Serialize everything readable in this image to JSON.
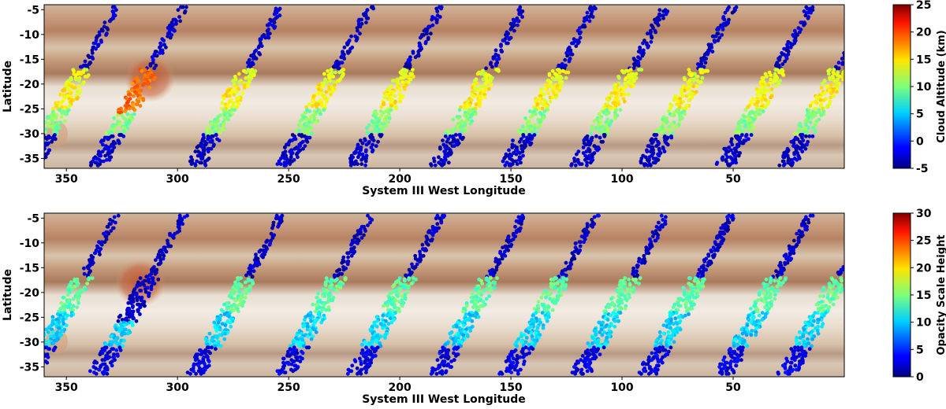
{
  "chart_data": [
    {
      "type": "scatter",
      "title": "",
      "xlabel": "System III West Longitude",
      "ylabel": "Latitude",
      "xlim": [
        360,
        0
      ],
      "ylim": [
        -37,
        -4
      ],
      "xticks": [
        "350",
        "300",
        "250",
        "200",
        "150",
        "100",
        "50"
      ],
      "yticks": [
        "-5",
        "-10",
        "-15",
        "-20",
        "-25",
        "-30",
        "-35"
      ],
      "x_inverted": true,
      "background": "Jupiter cloud-top map (belts and zones, Great Red Spot near 315 W, -22)",
      "colorbar": {
        "label": "Cloud Altitude (km)",
        "colormap": "jet",
        "range": [
          -5,
          25
        ],
        "ticks": [
          "25",
          "20",
          "15",
          "10",
          "5",
          "0",
          "-5"
        ]
      },
      "swath_longitude_centers": [
        346,
        316,
        272,
        232,
        200,
        163,
        131,
        99,
        69,
        34,
        6
      ],
      "series": [
        {
          "values_by_latitude_band": [
            {
              "latitude": [
                -5,
                -17
              ],
              "value": -3
            },
            {
              "latitude": [
                -17,
                -20
              ],
              "value": 13
            },
            {
              "latitude": [
                -20,
                -25
              ],
              "value": 14
            },
            {
              "latitude": [
                -25,
                -30
              ],
              "value": 10
            },
            {
              "latitude": [
                -30,
                -36
              ],
              "value": -3
            }
          ],
          "notable": "Great Red Spot swath at 300-320 W, -18 to -26: ~18 km"
        }
      ]
    },
    {
      "type": "scatter",
      "title": "",
      "xlabel": "System III West Longitude",
      "ylabel": "Latitude",
      "xlim": [
        360,
        0
      ],
      "ylim": [
        -37,
        -4
      ],
      "xticks": [
        "350",
        "300",
        "250",
        "200",
        "150",
        "100",
        "50"
      ],
      "yticks": [
        "-5",
        "-10",
        "-15",
        "-20",
        "-25",
        "-30",
        "-35"
      ],
      "x_inverted": true,
      "background": "Jupiter cloud-top map (belts and zones, Great Red Spot near 315 W, -22)",
      "colorbar": {
        "label": "Opacity Scale Height",
        "colormap": "jet",
        "range": [
          0,
          30
        ],
        "ticks": [
          "30",
          "25",
          "20",
          "15",
          "10",
          "5",
          "0"
        ]
      },
      "swath_longitude_centers": [
        346,
        316,
        272,
        232,
        200,
        163,
        131,
        99,
        69,
        34,
        6
      ],
      "series": [
        {
          "values_by_latitude_band": [
            {
              "latitude": [
                -5,
                -17
              ],
              "value": 2
            },
            {
              "latitude": [
                -17,
                -24
              ],
              "value": 14
            },
            {
              "latitude": [
                -24,
                -31
              ],
              "value": 10
            },
            {
              "latitude": [
                -31,
                -36
              ],
              "value": 3
            }
          ],
          "notable": "Great Red Spot swath at 300-320 W: ~2"
        }
      ]
    }
  ]
}
